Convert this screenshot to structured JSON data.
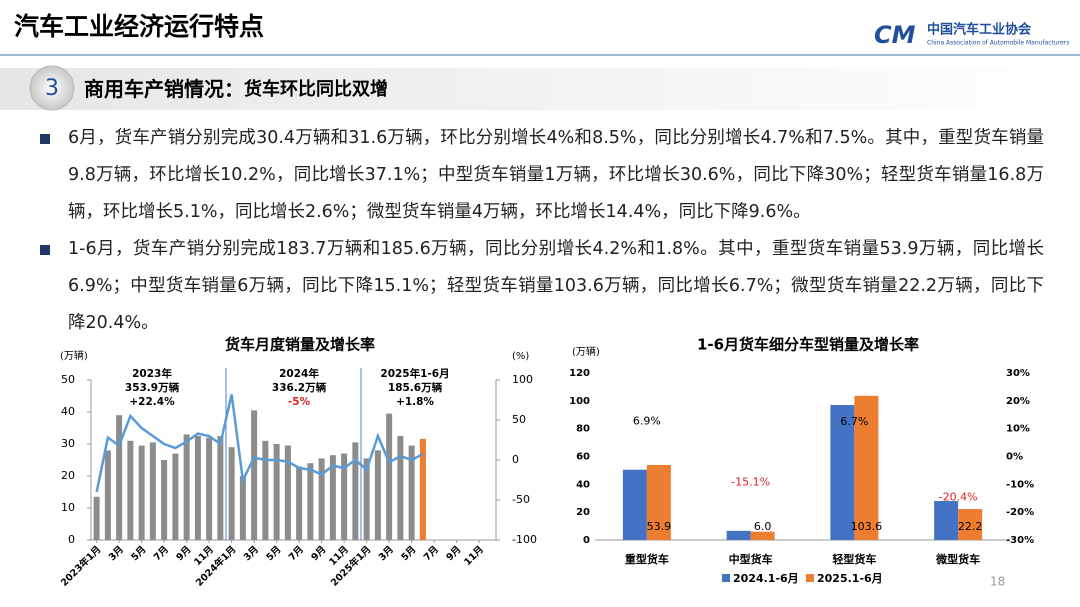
{
  "header": {
    "title": "汽车工业经济运行特点",
    "logo_cn": "中国汽车工业协会",
    "logo_en": "China Association of Automobile Manufacturers"
  },
  "section": {
    "number": "3",
    "title": "商用车产销情况：",
    "subtitle": "货车环比同比双增"
  },
  "bullets": [
    "6月，货车产销分别完成30.4万辆和31.6万辆，环比分别增长4%和8.5%，同比分别增长4.7%和7.5%。其中，重型货车销量9.8万辆，环比增长10.2%，同比增长37.1%；中型货车销量1万辆，环比增长30.6%，同比下降30%；轻型货车销量16.8万辆，环比增长5.1%，同比增长2.6%；微型货车销量4万辆，环比增长14.4%，同比下降9.6%。",
    "1-6月，货车产销分别完成183.7万辆和185.6万辆，同比分别增长4.2%和1.8%。其中，重型货车销量53.9万辆，同比增长6.9%；中型货车销量6万辆，同比下降15.1%；轻型货车销量103.6万辆，同比增长6.7%；微型货车销量22.2万辆，同比下降20.4%。"
  ],
  "page_number": "18",
  "chart_data": [
    {
      "type": "bar_line",
      "title": "货车月度销量及增长率",
      "y_label": "(万辆)",
      "y2_label": "(%)",
      "categories": [
        "2023年1月",
        null,
        "3月",
        null,
        "5月",
        null,
        "7月",
        null,
        "9月",
        null,
        "11月",
        null,
        "2024年1月",
        null,
        "3月",
        null,
        "5月",
        null,
        "7月",
        null,
        "9月",
        null,
        "11月",
        null,
        "2025年1月",
        null,
        "3月",
        null,
        "5月",
        null,
        "7月",
        null,
        "9月",
        null,
        "11月",
        null
      ],
      "series": [
        {
          "type": "bar",
          "color": "#8c8c8c",
          "highlight_color": "#ed7d31",
          "values": [
            13.5,
            28,
            39,
            31,
            29.5,
            30.5,
            25,
            27,
            33,
            32.5,
            32,
            32.5,
            29,
            20,
            40.5,
            31,
            30,
            29.5,
            23,
            24,
            25.5,
            26.5,
            27,
            30.5,
            25.5,
            28,
            39.5,
            32.5,
            29.5,
            31.6,
            null,
            null,
            null,
            null,
            null,
            null
          ]
        },
        {
          "type": "line",
          "axis": "y2",
          "color": "#5b9bd5",
          "values": [
            -40,
            28,
            18,
            55,
            40,
            30,
            20,
            15,
            23,
            33,
            30,
            20,
            82,
            -25,
            3,
            0,
            0,
            -2,
            -10,
            -12,
            -18,
            -7,
            -10,
            0,
            -12,
            30,
            -3,
            5,
            0,
            7.5,
            null,
            null,
            null,
            null,
            null,
            null
          ]
        }
      ],
      "ylim": [
        0,
        50
      ],
      "yticks": [
        0,
        10,
        20,
        30,
        40,
        50
      ],
      "y2lim": [
        -100,
        100
      ],
      "y2ticks": [
        -100,
        -50,
        0,
        50,
        100
      ],
      "annotations": [
        {
          "text": [
            "2023年",
            "353.9万辆",
            "+22.4%"
          ],
          "colors": [
            "#000000",
            "#000000",
            "#000000"
          ]
        },
        {
          "text": [
            "2024年",
            "336.2万辆",
            "-5%"
          ],
          "colors": [
            "#000000",
            "#000000",
            "#e02020"
          ]
        },
        {
          "text": [
            "2025年1-6月",
            "185.6万辆",
            "+1.8%"
          ],
          "colors": [
            "#000000",
            "#000000",
            "#000000"
          ]
        }
      ]
    },
    {
      "type": "grouped_bar",
      "title": "1-6月货车细分车型销量及增长率",
      "y_label": "(万辆)",
      "categories": [
        "重型货车",
        "中型货车",
        "轻型货车",
        "微型货车"
      ],
      "series": [
        {
          "name": "2024.1-6月",
          "color": "#4472c4",
          "values": [
            50.5,
            6.6,
            97,
            28
          ]
        },
        {
          "name": "2025.1-6月",
          "color": "#ed7d31",
          "values": [
            53.9,
            6,
            103.6,
            22.2
          ],
          "value_labels": [
            "53.9",
            "6.0",
            "103.6",
            "22.2"
          ]
        },
        {
          "type": "label",
          "axis": "y2",
          "color": "#000000",
          "negative_color": "#e02020",
          "values": [
            6.9,
            -15.1,
            6.7,
            -20.4
          ],
          "value_labels": [
            "6.9%",
            "-15.1%",
            "6.7%",
            "-20.4%"
          ]
        }
      ],
      "ylim": [
        0,
        120
      ],
      "yticks": [
        0,
        20,
        40,
        60,
        80,
        100,
        120
      ],
      "y2lim": [
        -30,
        30
      ],
      "y2ticks": [
        {
          "value": -30,
          "label": "-30%"
        },
        {
          "value": -20,
          "label": "-20%"
        },
        {
          "value": -10,
          "label": "-10%"
        },
        {
          "value": 0,
          "label": "0%"
        },
        {
          "value": 10,
          "label": "10%"
        },
        {
          "value": 20,
          "label": "20%"
        },
        {
          "value": 30,
          "label": "30%"
        }
      ],
      "legend": "bottom"
    }
  ]
}
